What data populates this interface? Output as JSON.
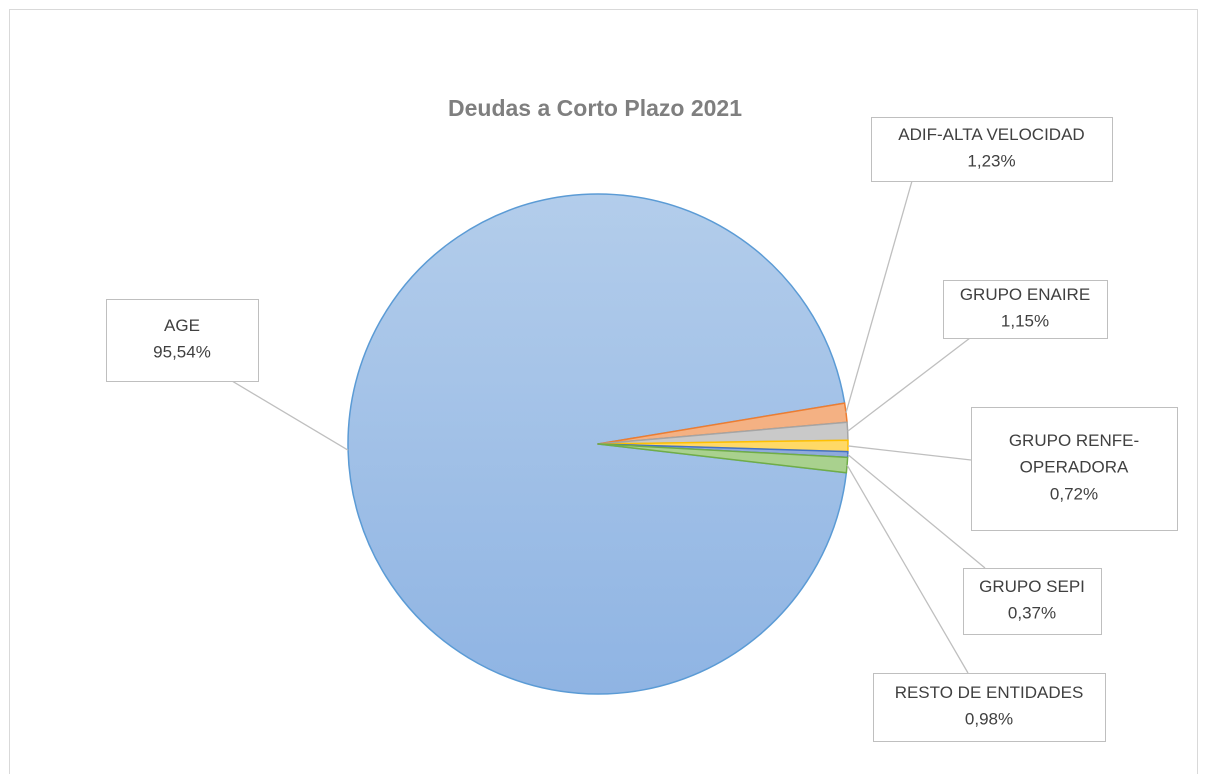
{
  "chart_data": {
    "type": "pie",
    "title": "Deudas a Corto Plazo 2021",
    "categories": [
      "AGE",
      "ADIF-ALTA VELOCIDAD",
      "GRUPO ENAIRE",
      "GRUPO RENFE-OPERADORA",
      "GRUPO SEPI",
      "RESTO DE ENTIDADES"
    ],
    "values": [
      95.54,
      1.23,
      1.15,
      0.72,
      0.37,
      0.98
    ],
    "value_labels": [
      "95,54%",
      "1,23%",
      "1,15%",
      "0,72%",
      "0,37%",
      "0,98%"
    ],
    "colors": [
      "#a3c1e8",
      "#f4b183",
      "#c9c9c9",
      "#ffd966",
      "#8faadc",
      "#a9d18e"
    ],
    "borders": [
      "#5b9bd5",
      "#ed7d31",
      "#a5a5a5",
      "#ffc000",
      "#4472c4",
      "#70ad47"
    ]
  }
}
